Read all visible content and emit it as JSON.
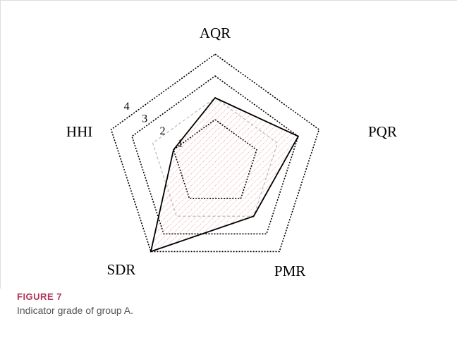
{
  "chart_data": {
    "type": "radar",
    "categories": [
      "AQR",
      "PQR",
      "PMR",
      "SDR",
      "HHI"
    ],
    "series": [
      {
        "values": [
          2,
          3,
          2,
          4,
          1
        ],
        "color": "#000000"
      }
    ],
    "rlim": [
      -1,
      4
    ],
    "rticks": [
      1,
      2,
      3,
      4
    ]
  },
  "caption": {
    "label": "FIGURE 7",
    "text": "Indicator grade of group A."
  }
}
